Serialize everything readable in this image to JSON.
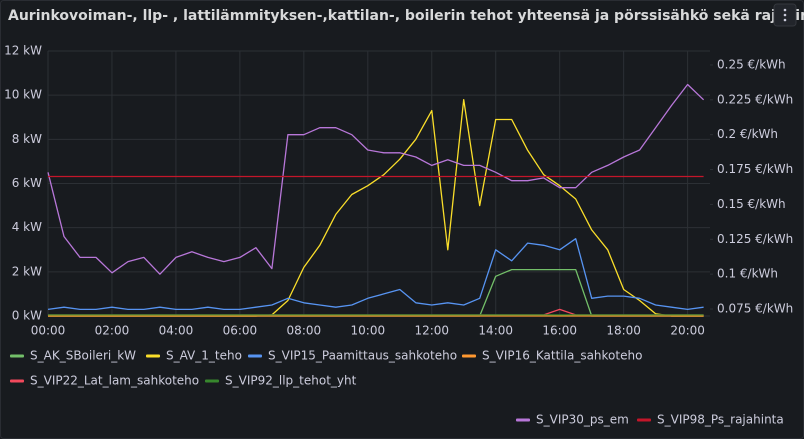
{
  "chart_data": {
    "type": "line",
    "title": "Aurinkovoiman-, llp- , lattilämmityksen-,kattilan-, boilerin tehot yhteensä ja pörssisähkö sekä rajahinta",
    "x": [
      0,
      0.5,
      1,
      1.5,
      2,
      2.5,
      3,
      3.5,
      4,
      4.5,
      5,
      5.5,
      6,
      6.5,
      7,
      7.5,
      8,
      8.5,
      9,
      9.5,
      10,
      10.5,
      11,
      11.5,
      12,
      12.5,
      13,
      13.5,
      14,
      14.5,
      15,
      15.5,
      16,
      16.5,
      17,
      17.5,
      18,
      18.5,
      19,
      19.5,
      20,
      20.5
    ],
    "xlim": [
      0,
      20.7
    ],
    "xticks": [
      {
        "value": 0,
        "label": "00:00"
      },
      {
        "value": 2,
        "label": "02:00"
      },
      {
        "value": 4,
        "label": "04:00"
      },
      {
        "value": 6,
        "label": "06:00"
      },
      {
        "value": 8,
        "label": "08:00"
      },
      {
        "value": 10,
        "label": "10:00"
      },
      {
        "value": 12,
        "label": "12:00"
      },
      {
        "value": 14,
        "label": "14:00"
      },
      {
        "value": 16,
        "label": "16:00"
      },
      {
        "value": 18,
        "label": "18:00"
      },
      {
        "value": 20,
        "label": "20:00"
      }
    ],
    "ylim": [
      0,
      12
    ],
    "yticks": [
      {
        "value": 0,
        "label": "0 kW"
      },
      {
        "value": 2,
        "label": "2 kW"
      },
      {
        "value": 4,
        "label": "4 kW"
      },
      {
        "value": 6,
        "label": "6 kW"
      },
      {
        "value": 8,
        "label": "8 kW"
      },
      {
        "value": 10,
        "label": "10 kW"
      },
      {
        "value": 12,
        "label": "12 kW"
      }
    ],
    "y2lim": [
      0.07,
      0.26
    ],
    "y2ticks": [
      {
        "value": 0.075,
        "label": "0.075 €/kWh"
      },
      {
        "value": 0.1,
        "label": "0.1 €/kWh"
      },
      {
        "value": 0.125,
        "label": "0.125 €/kWh"
      },
      {
        "value": 0.15,
        "label": "0.15 €/kWh"
      },
      {
        "value": 0.175,
        "label": "0.175 €/kWh"
      },
      {
        "value": 0.2,
        "label": "0.2 €/kWh"
      },
      {
        "value": 0.225,
        "label": "0.225 €/kWh"
      },
      {
        "value": 0.25,
        "label": "0.25 €/kWh"
      }
    ],
    "grid": true,
    "series": [
      {
        "name": "S_AK_SBoileri_kW",
        "color": "#73bf69",
        "values": [
          0,
          0,
          0,
          0,
          0,
          0,
          0,
          0,
          0,
          0,
          0,
          0,
          0,
          0,
          0,
          0,
          0,
          0,
          0,
          0,
          0,
          0,
          0,
          0,
          0,
          0,
          0,
          0,
          1.8,
          2.1,
          2.1,
          2.1,
          2.1,
          2.1,
          0,
          0,
          0,
          0,
          0,
          0,
          0,
          0
        ]
      },
      {
        "name": "S_AV_1_teho",
        "color": "#fade2a",
        "values": [
          0,
          0,
          0,
          0,
          0,
          0,
          0,
          0,
          0,
          0,
          0,
          0,
          0,
          0,
          0.05,
          0.7,
          2.2,
          3.2,
          4.6,
          5.5,
          5.9,
          6.4,
          7.1,
          8,
          9.3,
          3,
          9.8,
          5,
          8.9,
          8.9,
          7.5,
          6.4,
          5.9,
          5.3,
          3.9,
          3,
          1.2,
          0.7,
          0.1,
          0,
          0,
          0
        ]
      },
      {
        "name": "S_VIP15_Paamittaus_sahkoteho",
        "color": "#5794f2",
        "values": [
          0.3,
          0.4,
          0.3,
          0.3,
          0.4,
          0.3,
          0.3,
          0.4,
          0.3,
          0.3,
          0.4,
          0.3,
          0.3,
          0.4,
          0.5,
          0.8,
          0.6,
          0.5,
          0.4,
          0.5,
          0.8,
          1.0,
          1.2,
          0.6,
          0.5,
          0.6,
          0.5,
          0.8,
          3.0,
          2.5,
          3.3,
          3.2,
          3.0,
          3.5,
          0.8,
          0.9,
          0.9,
          0.8,
          0.5,
          0.4,
          0.3,
          0.4
        ]
      },
      {
        "name": "S_VIP16_Kattila_sahkoteho",
        "color": "#ff9830",
        "values": [
          0,
          0,
          0,
          0,
          0,
          0,
          0,
          0,
          0,
          0,
          0,
          0,
          0,
          0,
          0,
          0,
          0,
          0,
          0,
          0,
          0,
          0,
          0,
          0,
          0,
          0,
          0,
          0,
          0,
          0,
          0,
          0,
          0,
          0,
          0,
          0,
          0,
          0,
          0,
          0,
          0,
          0
        ]
      },
      {
        "name": "S_VIP22_Lat_lam_sahkoteho",
        "color": "#f2495c",
        "values": [
          0.05,
          0.05,
          0.05,
          0.05,
          0.05,
          0.05,
          0.05,
          0.05,
          0.05,
          0.05,
          0.05,
          0.05,
          0.05,
          0.05,
          0.05,
          0.05,
          0.05,
          0.05,
          0.05,
          0.05,
          0.05,
          0.05,
          0.05,
          0.05,
          0.05,
          0.05,
          0.05,
          0.05,
          0.05,
          0.05,
          0.05,
          0.05,
          0.3,
          0.05,
          0.05,
          0.05,
          0.05,
          0.05,
          0.05,
          0.05,
          0.05,
          0.05
        ]
      },
      {
        "name": "S_VIP92_llp_tehot_yht",
        "color": "#37872d",
        "values": [
          0.05,
          0.05,
          0.05,
          0.05,
          0.05,
          0.05,
          0.05,
          0.05,
          0.05,
          0.05,
          0.05,
          0.05,
          0.05,
          0.05,
          0.05,
          0.05,
          0.05,
          0.05,
          0.05,
          0.05,
          0.05,
          0.05,
          0.05,
          0.05,
          0.05,
          0.05,
          0.05,
          0.05,
          0.05,
          0.05,
          0.05,
          0.05,
          0.05,
          0.05,
          0.05,
          0.05,
          0.05,
          0.05,
          0.05,
          0.05,
          0.05,
          0.05
        ]
      },
      {
        "name": "S_VIP30_ps_em",
        "color": "#b877d9",
        "axis": "y2",
        "values": [
          0.173,
          0.127,
          0.112,
          0.112,
          0.101,
          0.109,
          0.112,
          0.1,
          0.112,
          0.116,
          0.112,
          0.109,
          0.112,
          0.119,
          0.104,
          0.2,
          0.2,
          0.205,
          0.205,
          0.2,
          0.189,
          0.187,
          0.187,
          0.184,
          0.178,
          0.182,
          0.178,
          0.178,
          0.173,
          0.167,
          0.167,
          0.169,
          0.162,
          0.162,
          0.173,
          0.178,
          0.184,
          0.189,
          0.205,
          0.221,
          0.236,
          0.225
        ]
      },
      {
        "name": "S_VIP98_Ps_rajahinta",
        "color": "#c4162a",
        "axis": "y2",
        "values": [
          0.17,
          0.17,
          0.17,
          0.17,
          0.17,
          0.17,
          0.17,
          0.17,
          0.17,
          0.17,
          0.17,
          0.17,
          0.17,
          0.17,
          0.17,
          0.17,
          0.17,
          0.17,
          0.17,
          0.17,
          0.17,
          0.17,
          0.17,
          0.17,
          0.17,
          0.17,
          0.17,
          0.17,
          0.17,
          0.17,
          0.17,
          0.17,
          0.17,
          0.17,
          0.17,
          0.17,
          0.17,
          0.17,
          0.17,
          0.17,
          0.17,
          0.17
        ]
      }
    ]
  }
}
